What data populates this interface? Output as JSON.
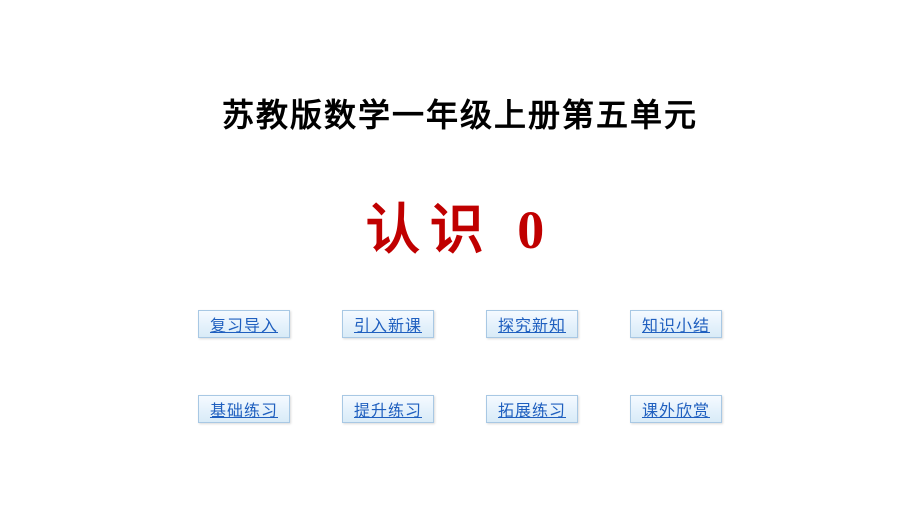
{
  "subtitle": "苏教版数学一年级上册第五单元",
  "main_title": "认识 0",
  "nav": {
    "row1": [
      {
        "label": "复习导入"
      },
      {
        "label": "引入新课"
      },
      {
        "label": "探究新知"
      },
      {
        "label": "知识小结"
      }
    ],
    "row2": [
      {
        "label": "基础练习"
      },
      {
        "label": "提升练习"
      },
      {
        "label": "拓展练习"
      },
      {
        "label": "课外欣赏"
      }
    ]
  },
  "colors": {
    "title_color": "#c00000",
    "subtitle_color": "#000000",
    "button_text": "#1f5fbf",
    "button_bg_top": "#f5faff",
    "button_bg_bottom": "#d9ebf7",
    "button_border": "#a8c8e4",
    "background": "#ffffff"
  }
}
